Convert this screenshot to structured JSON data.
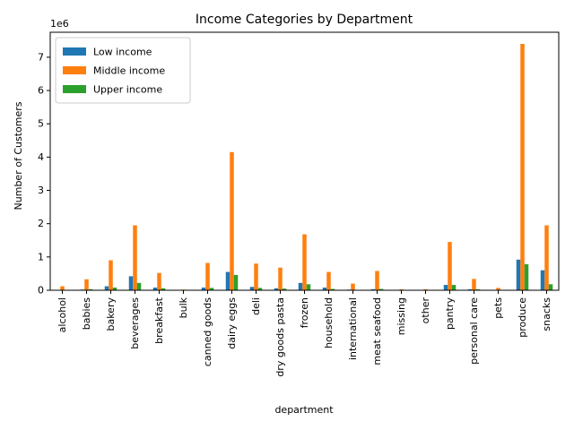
{
  "chart_data": {
    "type": "bar",
    "title": "Income Categories by Department",
    "xlabel": "department",
    "ylabel": "Number of Customers",
    "y_offset_label": "1e6",
    "ylim": [
      0,
      7.75
    ],
    "y_ticks": [
      0,
      1,
      2,
      3,
      4,
      5,
      6,
      7
    ],
    "y_tick_labels": [
      "0",
      "1",
      "2",
      "3",
      "4",
      "5",
      "6",
      "7"
    ],
    "y_unit_multiplier": 1000000,
    "legend_placement": "top-left",
    "grid": false,
    "categories": [
      "alcohol",
      "babies",
      "bakery",
      "beverages",
      "breakfast",
      "bulk",
      "canned goods",
      "dairy eggs",
      "deli",
      "dry goods pasta",
      "frozen",
      "household",
      "international",
      "meat seafood",
      "missing",
      "other",
      "pantry",
      "personal care",
      "pets",
      "produce",
      "snacks"
    ],
    "series": [
      {
        "name": "Low income",
        "color": "#1f77b4",
        "values": [
          0.01,
          0.02,
          0.12,
          0.42,
          0.08,
          0.005,
          0.08,
          0.55,
          0.1,
          0.06,
          0.22,
          0.08,
          0.02,
          0.03,
          0.005,
          0.005,
          0.16,
          0.03,
          0.01,
          0.92,
          0.6
        ]
      },
      {
        "name": "Middle income",
        "color": "#ff7f0e",
        "values": [
          0.12,
          0.33,
          0.9,
          1.95,
          0.52,
          0.02,
          0.82,
          4.15,
          0.8,
          0.68,
          1.68,
          0.55,
          0.2,
          0.58,
          0.03,
          0.03,
          1.45,
          0.34,
          0.07,
          7.4,
          1.95
        ]
      },
      {
        "name": "Upper income",
        "color": "#2ca02c",
        "values": [
          0.01,
          0.03,
          0.08,
          0.22,
          0.06,
          0.005,
          0.07,
          0.46,
          0.07,
          0.05,
          0.18,
          0.04,
          0.01,
          0.04,
          0.005,
          0.005,
          0.16,
          0.03,
          0.01,
          0.78,
          0.18
        ]
      }
    ]
  }
}
